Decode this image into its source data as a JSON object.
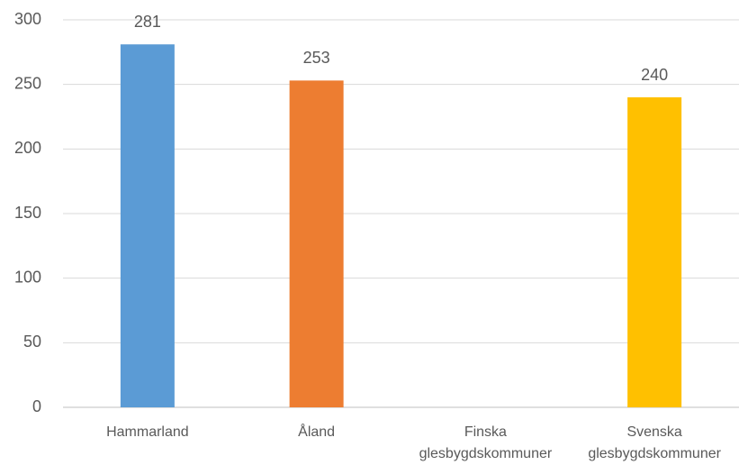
{
  "chart_data": {
    "type": "bar",
    "categories": [
      "Hammarland",
      "Åland",
      "Finska glesbygdskommuner",
      "Svenska glesbygdskommuner"
    ],
    "values": [
      281,
      253,
      null,
      240
    ],
    "colors": [
      "#5b9bd5",
      "#ed7d31",
      null,
      "#ffc000"
    ],
    "ylim": [
      0,
      300
    ],
    "yticks": [
      0,
      50,
      100,
      150,
      200,
      250,
      300
    ],
    "grid": true
  }
}
